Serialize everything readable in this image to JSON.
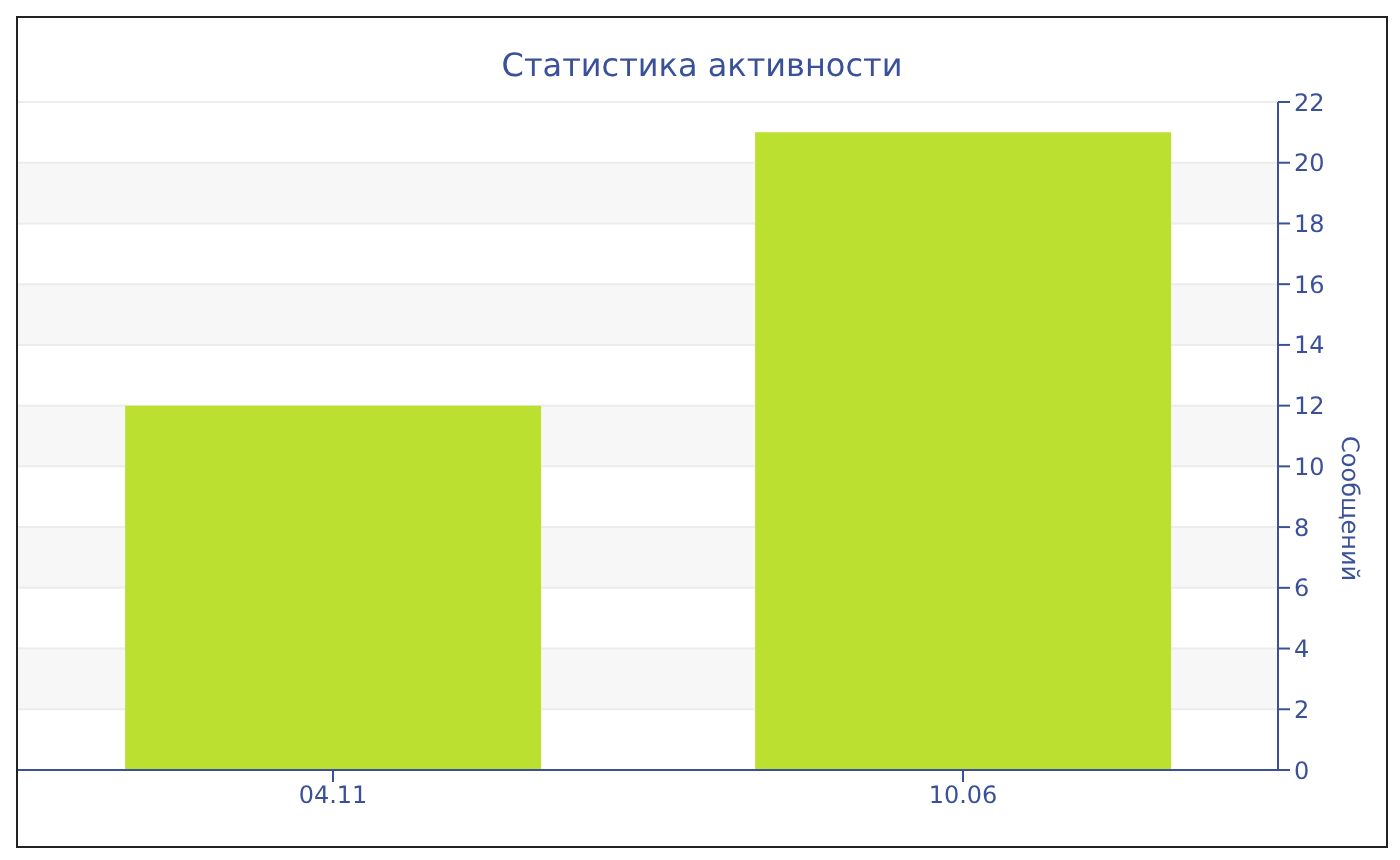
{
  "chart_data": {
    "type": "bar",
    "title": "Статистика активности",
    "ylabel": "Сообщений",
    "categories": [
      "04.11",
      "10.06"
    ],
    "values": [
      12,
      21
    ],
    "color": "#bbe02f",
    "ylim": [
      0,
      22
    ],
    "yticks": [
      0,
      2,
      4,
      6,
      8,
      10,
      12,
      14,
      16,
      18,
      20,
      22
    ],
    "grid": "y"
  }
}
